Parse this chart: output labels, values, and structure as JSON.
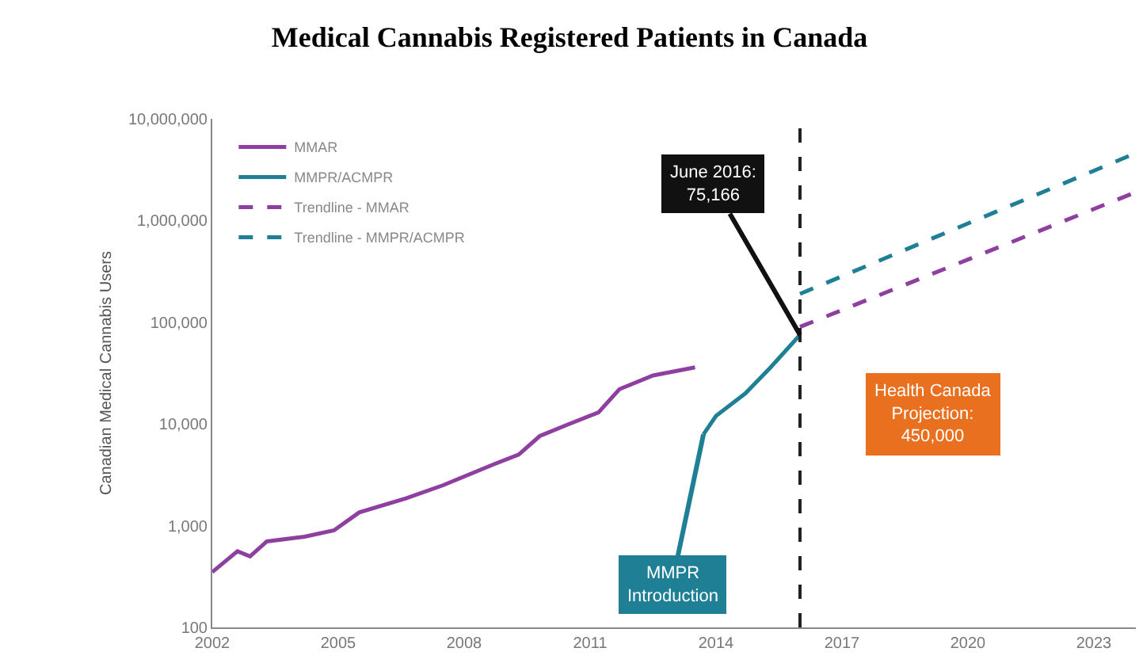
{
  "chart_data": {
    "type": "line",
    "title": "Medical Cannabis Registered Patients in Canada",
    "ylabel": "Canadian Medical Cannabis Users",
    "log": "y",
    "legend": "top left",
    "marker": "none",
    "xlim": [
      2002,
      2024
    ],
    "xticks": [
      2002,
      2005,
      2008,
      2011,
      2014,
      2017,
      2020,
      2023
    ],
    "ylim": [
      100,
      10000000
    ],
    "yticks": [
      {
        "value": 100,
        "label": "100"
      },
      {
        "value": 1000,
        "label": "1,000"
      },
      {
        "value": 10000,
        "label": "10,000"
      },
      {
        "value": 100000,
        "label": "100,000"
      },
      {
        "value": 1000000,
        "label": "1,000,000"
      },
      {
        "value": 10000000,
        "label": "10,000,000"
      }
    ],
    "series": [
      {
        "name": "MMAR",
        "color": "#8e3fa0",
        "line_style": "solid",
        "x": [
          2002,
          2002.6,
          2002.9,
          2003.3,
          2004.2,
          2004.9,
          2005.5,
          2006.6,
          2007.5,
          2008.7,
          2009.3,
          2009.8,
          2010.5,
          2011.2,
          2011.7,
          2012.5,
          2013.5
        ],
        "values": [
          350,
          560,
          500,
          700,
          780,
          900,
          1350,
          1850,
          2500,
          4000,
          5000,
          7600,
          10000,
          13000,
          22000,
          30000,
          36000
        ]
      },
      {
        "name": "MMPR/ACMPR",
        "color": "#1f7f95",
        "line_style": "solid",
        "x": [
          2013.7,
          2014.0,
          2014.7,
          2015.3,
          2016
        ],
        "values": [
          7900,
          12000,
          20000,
          36000,
          75166
        ]
      },
      {
        "name": "Trendline - MMAR",
        "color": "#8e3fa0",
        "line_style": "dashed",
        "x": [
          2016,
          2024
        ],
        "values": [
          90000,
          1900000
        ]
      },
      {
        "name": "Trendline - MMPR/ACMPR",
        "color": "#1f7f95",
        "line_style": "dashed",
        "x": [
          2016,
          2024
        ],
        "values": [
          190000,
          4600000
        ]
      }
    ],
    "ref_lines": [
      {
        "axis": "x",
        "value": 2016,
        "color": "#222222",
        "line_style": "dashed"
      }
    ],
    "annotations": [
      {
        "text": "June 2016:\n75,166",
        "x": 2016,
        "y": 75166
      },
      {
        "text": "MMPR\nIntroduction",
        "x": 2013.7,
        "y": 7900
      },
      "Health Canada\nProjection:\n450,000"
    ]
  }
}
